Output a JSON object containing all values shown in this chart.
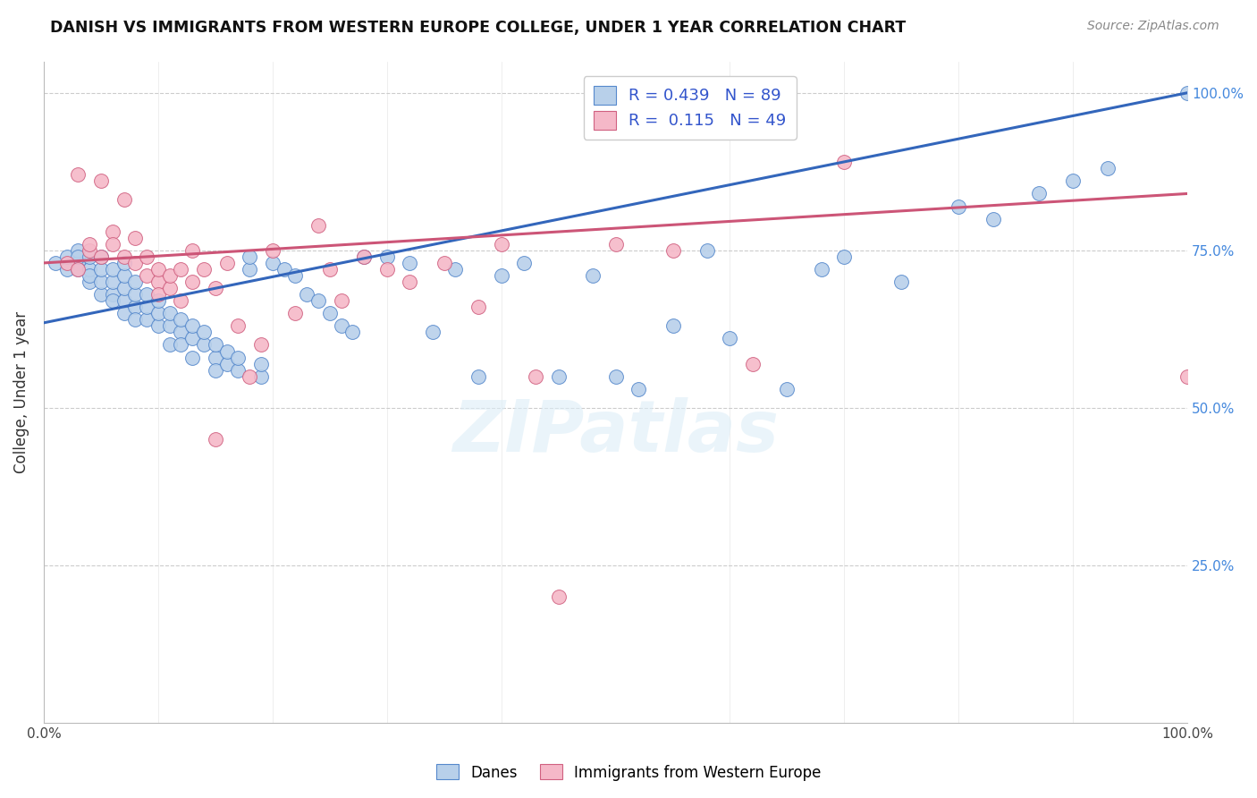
{
  "title": "DANISH VS IMMIGRANTS FROM WESTERN EUROPE COLLEGE, UNDER 1 YEAR CORRELATION CHART",
  "source": "Source: ZipAtlas.com",
  "ylabel": "College, Under 1 year",
  "watermark": "ZIPatlas",
  "blue_fill": "#b8d0ea",
  "blue_edge": "#5588cc",
  "pink_fill": "#f5b8c8",
  "pink_edge": "#d06080",
  "blue_line": "#3366bb",
  "pink_line": "#cc5577",
  "xlim": [
    0.0,
    1.0
  ],
  "ylim": [
    0.0,
    1.05
  ],
  "blue_line_x": [
    0.0,
    1.0
  ],
  "blue_line_y": [
    0.635,
    1.0
  ],
  "pink_line_x": [
    0.0,
    1.0
  ],
  "pink_line_y": [
    0.73,
    0.84
  ],
  "danes_x": [
    0.01,
    0.02,
    0.02,
    0.03,
    0.03,
    0.03,
    0.03,
    0.04,
    0.04,
    0.04,
    0.04,
    0.05,
    0.05,
    0.05,
    0.05,
    0.06,
    0.06,
    0.06,
    0.06,
    0.07,
    0.07,
    0.07,
    0.07,
    0.07,
    0.08,
    0.08,
    0.08,
    0.08,
    0.09,
    0.09,
    0.09,
    0.1,
    0.1,
    0.1,
    0.11,
    0.11,
    0.11,
    0.12,
    0.12,
    0.12,
    0.13,
    0.13,
    0.13,
    0.14,
    0.14,
    0.15,
    0.15,
    0.15,
    0.16,
    0.16,
    0.17,
    0.17,
    0.18,
    0.18,
    0.19,
    0.19,
    0.2,
    0.21,
    0.22,
    0.23,
    0.24,
    0.25,
    0.26,
    0.27,
    0.28,
    0.3,
    0.32,
    0.34,
    0.36,
    0.38,
    0.4,
    0.42,
    0.45,
    0.48,
    0.5,
    0.52,
    0.55,
    0.58,
    0.6,
    0.65,
    0.68,
    0.7,
    0.75,
    0.8,
    0.83,
    0.87,
    0.9,
    0.93,
    1.0
  ],
  "danes_y": [
    0.73,
    0.72,
    0.74,
    0.73,
    0.75,
    0.72,
    0.74,
    0.7,
    0.72,
    0.74,
    0.71,
    0.68,
    0.7,
    0.72,
    0.74,
    0.68,
    0.7,
    0.72,
    0.67,
    0.67,
    0.69,
    0.71,
    0.73,
    0.65,
    0.66,
    0.68,
    0.7,
    0.64,
    0.64,
    0.66,
    0.68,
    0.63,
    0.65,
    0.67,
    0.63,
    0.65,
    0.6,
    0.62,
    0.64,
    0.6,
    0.61,
    0.63,
    0.58,
    0.6,
    0.62,
    0.58,
    0.6,
    0.56,
    0.57,
    0.59,
    0.56,
    0.58,
    0.72,
    0.74,
    0.55,
    0.57,
    0.73,
    0.72,
    0.71,
    0.68,
    0.67,
    0.65,
    0.63,
    0.62,
    0.74,
    0.74,
    0.73,
    0.62,
    0.72,
    0.55,
    0.71,
    0.73,
    0.55,
    0.71,
    0.55,
    0.53,
    0.63,
    0.75,
    0.61,
    0.53,
    0.72,
    0.74,
    0.7,
    0.82,
    0.8,
    0.84,
    0.86,
    0.88,
    1.0
  ],
  "imm_x": [
    0.02,
    0.03,
    0.03,
    0.04,
    0.04,
    0.05,
    0.05,
    0.06,
    0.06,
    0.07,
    0.07,
    0.08,
    0.08,
    0.09,
    0.09,
    0.1,
    0.1,
    0.1,
    0.11,
    0.11,
    0.12,
    0.12,
    0.13,
    0.13,
    0.14,
    0.15,
    0.15,
    0.16,
    0.17,
    0.18,
    0.19,
    0.2,
    0.22,
    0.24,
    0.25,
    0.26,
    0.28,
    0.3,
    0.32,
    0.35,
    0.38,
    0.4,
    0.43,
    0.45,
    0.5,
    0.55,
    0.62,
    0.7,
    1.0
  ],
  "imm_y": [
    0.73,
    0.72,
    0.87,
    0.75,
    0.76,
    0.74,
    0.86,
    0.78,
    0.76,
    0.74,
    0.83,
    0.73,
    0.77,
    0.71,
    0.74,
    0.7,
    0.72,
    0.68,
    0.69,
    0.71,
    0.67,
    0.72,
    0.75,
    0.7,
    0.72,
    0.69,
    0.45,
    0.73,
    0.63,
    0.55,
    0.6,
    0.75,
    0.65,
    0.79,
    0.72,
    0.67,
    0.74,
    0.72,
    0.7,
    0.73,
    0.66,
    0.76,
    0.55,
    0.2,
    0.76,
    0.75,
    0.57,
    0.89,
    0.55
  ],
  "figsize": [
    14.06,
    8.92
  ],
  "dpi": 100
}
